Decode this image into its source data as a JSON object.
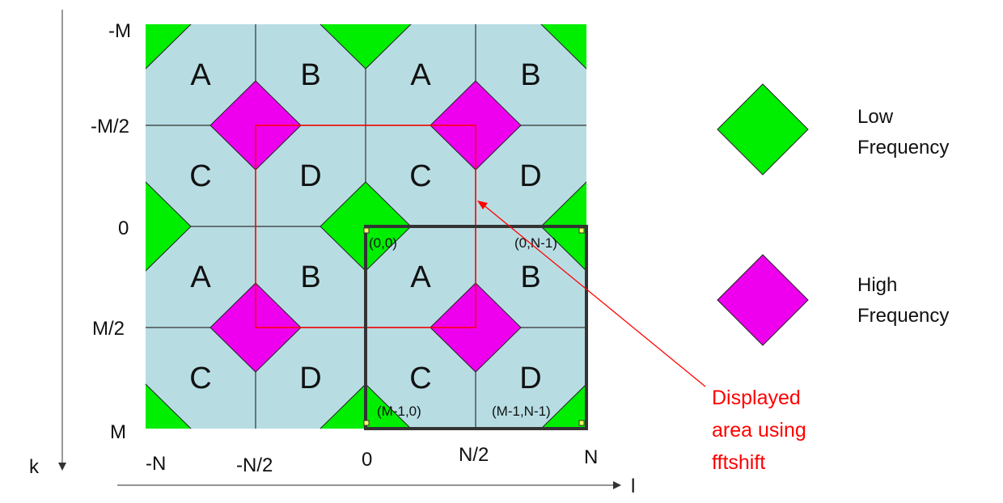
{
  "diagram": {
    "quadrant_labels": {
      "row1": [
        "A",
        "B",
        "A",
        "B"
      ],
      "row2": [
        "C",
        "D",
        "C",
        "D"
      ],
      "row3": [
        "A",
        "B",
        "A",
        "B"
      ],
      "row4": [
        "C",
        "D",
        "C",
        "D"
      ]
    },
    "row_axis_labels": [
      "-M",
      "-M/2",
      "0",
      "M/2",
      "M"
    ],
    "column_axis_labels": [
      "-N",
      "-N/2",
      "0",
      "N/2",
      "N"
    ],
    "row_axis_name": "k",
    "column_axis_name": "l",
    "corner_labels": {
      "top_left": "(0,0)",
      "top_right": "(0,N-1)",
      "bottom_left": "(M-1,0)",
      "bottom_right": "(M-1,N-1)"
    },
    "legend": {
      "low": {
        "line1": "Low",
        "line2": "Frequency",
        "color": "#00ee00"
      },
      "high": {
        "line1": "High",
        "line2": "Frequency",
        "color": "#ee00ee"
      }
    },
    "annotation": {
      "line1": "Displayed",
      "line2": "area using",
      "line3": "fftshift",
      "color": "#ff0000"
    },
    "colors": {
      "tile_fill": "#b7dde3",
      "grid_line": "#333333",
      "displayed_box": "#ff0000",
      "original_box": "#333333",
      "corner_marker": "#ffff66"
    }
  }
}
